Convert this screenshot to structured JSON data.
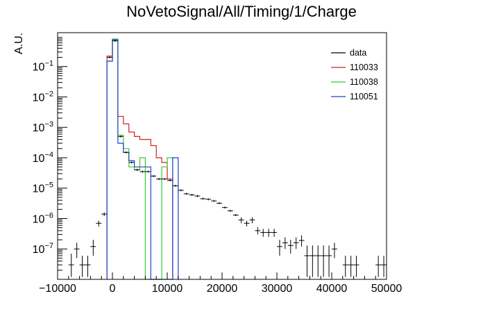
{
  "chart_data": {
    "type": "line",
    "title": "NoVetoSignal/All/Timing/1/Charge",
    "ylabel": "A.U.",
    "xlabel": "",
    "x_scale": "linear",
    "y_scale": "log",
    "xlim": [
      -10000,
      50000
    ],
    "ylim": [
      1e-08,
      1.3
    ],
    "x_ticks": [
      {
        "value": -10000,
        "label": "−10000"
      },
      {
        "value": 0,
        "label": "0"
      },
      {
        "value": 10000,
        "label": "10000"
      },
      {
        "value": 20000,
        "label": "20000"
      },
      {
        "value": 30000,
        "label": "30000"
      },
      {
        "value": 40000,
        "label": "40000"
      },
      {
        "value": 50000,
        "label": "50000"
      }
    ],
    "y_ticks": [
      {
        "value": 1e-07,
        "base": "10",
        "exp": "−7"
      },
      {
        "value": 1e-06,
        "base": "10",
        "exp": "−6"
      },
      {
        "value": 1e-05,
        "base": "10",
        "exp": "−5"
      },
      {
        "value": 0.0001,
        "base": "10",
        "exp": "−4"
      },
      {
        "value": 0.001,
        "base": "10",
        "exp": "−3"
      },
      {
        "value": 0.01,
        "base": "10",
        "exp": "−2"
      },
      {
        "value": 0.1,
        "base": "10",
        "exp": "−1"
      }
    ],
    "grid": false,
    "legend_position": "top-right",
    "bin_width": 1000,
    "series": [
      {
        "name": "data",
        "color": "#000000",
        "style": "points-with-error-bars",
        "points": [
          {
            "x": -7500,
            "y": 3e-08,
            "lo": 1.2e-08,
            "hi": 7e-08
          },
          {
            "x": -6500,
            "y": 1e-07,
            "lo": 5e-08,
            "hi": 1.6e-07
          },
          {
            "x": -5500,
            "y": 3e-08,
            "lo": 1.2e-08,
            "hi": 6e-08
          },
          {
            "x": -4500,
            "y": 3e-08,
            "lo": 1.2e-08,
            "hi": 6e-08
          },
          {
            "x": -3500,
            "y": 1.2e-07,
            "lo": 6e-08,
            "hi": 2e-07
          },
          {
            "x": -2500,
            "y": 7e-07,
            "lo": 5.5e-07,
            "hi": 8.5e-07
          },
          {
            "x": -1500,
            "y": 1.4e-06,
            "lo": 1.2e-06,
            "hi": 1.6e-06
          },
          {
            "x": -500,
            "y": 0.2
          },
          {
            "x": 500,
            "y": 0.7
          },
          {
            "x": 1500,
            "y": 0.0005
          },
          {
            "x": 2500,
            "y": 0.00015
          },
          {
            "x": 3500,
            "y": 7e-05
          },
          {
            "x": 4500,
            "y": 4e-05
          },
          {
            "x": 5500,
            "y": 3.5e-05
          },
          {
            "x": 6500,
            "y": 3.5e-05
          },
          {
            "x": 7500,
            "y": 2.5e-05
          },
          {
            "x": 8500,
            "y": 2e-05
          },
          {
            "x": 9500,
            "y": 2e-05
          },
          {
            "x": 10500,
            "y": 1.8e-05
          },
          {
            "x": 11500,
            "y": 1.2e-05
          },
          {
            "x": 12500,
            "y": 8.5e-06
          },
          {
            "x": 13500,
            "y": 6.5e-06
          },
          {
            "x": 14500,
            "y": 6e-06
          },
          {
            "x": 15500,
            "y": 5.5e-06
          },
          {
            "x": 16500,
            "y": 4.5e-06
          },
          {
            "x": 17500,
            "y": 4.3e-06
          },
          {
            "x": 18500,
            "y": 3.8e-06
          },
          {
            "x": 19500,
            "y": 3.2e-06
          },
          {
            "x": 20500,
            "y": 2.3e-06
          },
          {
            "x": 21500,
            "y": 1.8e-06
          },
          {
            "x": 22500,
            "y": 1.3e-06
          },
          {
            "x": 23500,
            "y": 9e-07,
            "lo": 7e-07,
            "hi": 1.1e-06
          },
          {
            "x": 24500,
            "y": 7e-07,
            "lo": 5.5e-07,
            "hi": 8.5e-07
          },
          {
            "x": 25500,
            "y": 9e-07,
            "lo": 7e-07,
            "hi": 1.1e-06
          },
          {
            "x": 26500,
            "y": 4e-07,
            "lo": 3e-07,
            "hi": 5.2e-07
          },
          {
            "x": 27500,
            "y": 3.5e-07,
            "lo": 2.5e-07,
            "hi": 4.6e-07
          },
          {
            "x": 28500,
            "y": 3.5e-07,
            "lo": 2.5e-07,
            "hi": 4.6e-07
          },
          {
            "x": 29500,
            "y": 3.5e-07,
            "lo": 2.5e-07,
            "hi": 4.6e-07
          },
          {
            "x": 30500,
            "y": 1.2e-07,
            "lo": 6e-08,
            "hi": 2e-07
          },
          {
            "x": 31500,
            "y": 1.6e-07,
            "lo": 1e-07,
            "hi": 2.4e-07
          },
          {
            "x": 32500,
            "y": 1.3e-07,
            "lo": 7e-08,
            "hi": 2e-07
          },
          {
            "x": 33500,
            "y": 1.6e-07,
            "lo": 1e-07,
            "hi": 2.4e-07
          },
          {
            "x": 34500,
            "y": 1.9e-07,
            "lo": 1.2e-07,
            "hi": 2.8e-07
          },
          {
            "x": 35500,
            "y": 6e-08,
            "lo": 1.2e-08,
            "hi": 1.3e-07
          },
          {
            "x": 36500,
            "y": 6e-08,
            "lo": 1.2e-08,
            "hi": 1.3e-07
          },
          {
            "x": 37500,
            "y": 6e-08,
            "lo": 1.2e-08,
            "hi": 1.3e-07
          },
          {
            "x": 38500,
            "y": 6e-08,
            "lo": 1.2e-08,
            "hi": 1.3e-07
          },
          {
            "x": 39500,
            "y": 6e-08,
            "lo": 1.2e-08,
            "hi": 1.3e-07
          },
          {
            "x": 40500,
            "y": 1e-07,
            "lo": 5e-08,
            "hi": 1.6e-07
          },
          {
            "x": 42500,
            "y": 3e-08,
            "lo": 1.2e-08,
            "hi": 6e-08
          },
          {
            "x": 43500,
            "y": 3e-08,
            "lo": 1.2e-08,
            "hi": 6e-08
          },
          {
            "x": 44500,
            "y": 3e-08,
            "lo": 1.2e-08,
            "hi": 6e-08
          },
          {
            "x": 48500,
            "y": 3e-08,
            "lo": 1.2e-08,
            "hi": 6e-08
          },
          {
            "x": 49500,
            "y": 3e-08,
            "lo": 1.2e-08,
            "hi": 6e-08
          }
        ]
      },
      {
        "name": "110033",
        "color": "#d62020",
        "style": "step",
        "bins": [
          {
            "x0": -1000,
            "x1": 0,
            "y": 0.22
          },
          {
            "x0": 0,
            "x1": 1000,
            "y": 0.8
          },
          {
            "x0": 1000,
            "x1": 2000,
            "y": 0.0023
          },
          {
            "x0": 2000,
            "x1": 3000,
            "y": 0.0013
          },
          {
            "x0": 3000,
            "x1": 4000,
            "y": 0.0007
          },
          {
            "x0": 4000,
            "x1": 5000,
            "y": 0.0005
          },
          {
            "x0": 5000,
            "x1": 7000,
            "y": 0.0004
          },
          {
            "x0": 7000,
            "x1": 8000,
            "y": 0.00025
          },
          {
            "x0": 8000,
            "x1": 9000,
            "y": 0.0001
          },
          {
            "x0": 9000,
            "x1": 10000,
            "y": 7e-05
          },
          {
            "x0": 10000,
            "x1": 11000,
            "y": 2e-05
          }
        ]
      },
      {
        "name": "110038",
        "color": "#33cc33",
        "style": "step",
        "bins": [
          {
            "x0": -1000,
            "x1": 0,
            "y": 0.15
          },
          {
            "x0": 0,
            "x1": 1000,
            "y": 0.8
          },
          {
            "x0": 1000,
            "x1": 2000,
            "y": 0.00055
          },
          {
            "x0": 2000,
            "x1": 3000,
            "y": 0.0002
          },
          {
            "x0": 3000,
            "x1": 4000,
            "y": 5e-05
          },
          {
            "x0": 4000,
            "x1": 5000,
            "y": 4e-05
          },
          {
            "x0": 5000,
            "x1": 6000,
            "y": 0.0001
          },
          {
            "x0": 6000,
            "x1": 9000,
            "y": 1e-08
          },
          {
            "x0": 9000,
            "x1": 10000,
            "y": 5e-05
          },
          {
            "x0": 10000,
            "x1": 11000,
            "y": 0.0001
          }
        ]
      },
      {
        "name": "110051",
        "color": "#1f3fcc",
        "style": "step",
        "bins": [
          {
            "x0": -1000,
            "x1": 0,
            "y": 0.15
          },
          {
            "x0": 0,
            "x1": 1000,
            "y": 0.75
          },
          {
            "x0": 1000,
            "x1": 2000,
            "y": 0.0003
          },
          {
            "x0": 2000,
            "x1": 3000,
            "y": 0.00015
          },
          {
            "x0": 3000,
            "x1": 4000,
            "y": 8e-05
          },
          {
            "x0": 4000,
            "x1": 7000,
            "y": 5e-05
          },
          {
            "x0": 7000,
            "x1": 11000,
            "y": 1e-08
          },
          {
            "x0": 11000,
            "x1": 12000,
            "y": 0.0001
          }
        ]
      }
    ]
  }
}
